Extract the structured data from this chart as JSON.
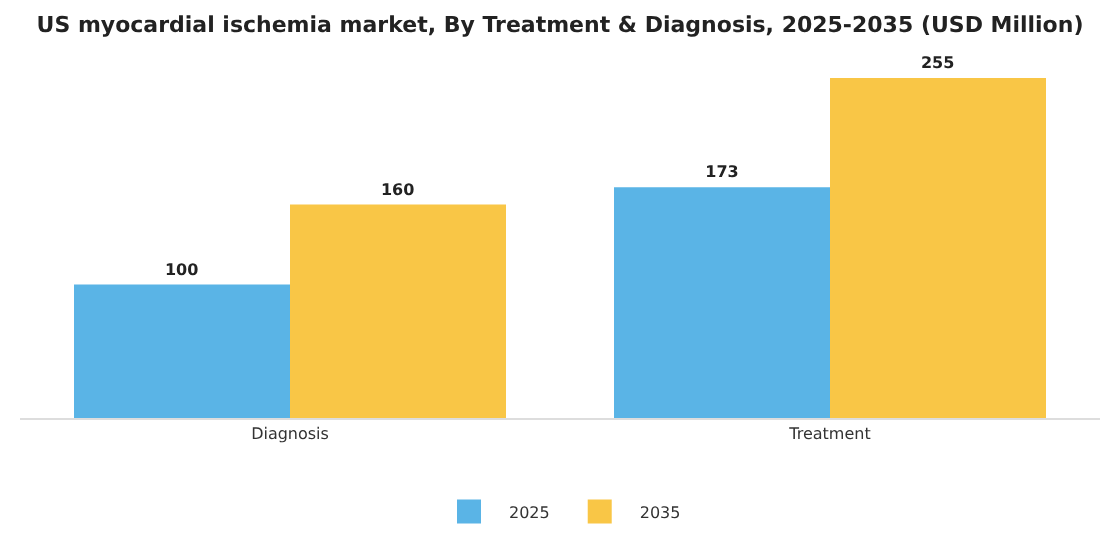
{
  "chart_data": {
    "type": "bar",
    "title": "US myocardial ischemia market, By Treatment & Diagnosis, 2025-2035 (USD Million)",
    "categories": [
      "Diagnosis",
      "Treatment"
    ],
    "series": [
      {
        "name": "2025",
        "color": "#5ab4e6",
        "values": [
          100,
          173
        ]
      },
      {
        "name": "2035",
        "color": "#f9c646",
        "values": [
          160,
          255
        ]
      }
    ],
    "data_labels": true,
    "legend": "bottom"
  }
}
